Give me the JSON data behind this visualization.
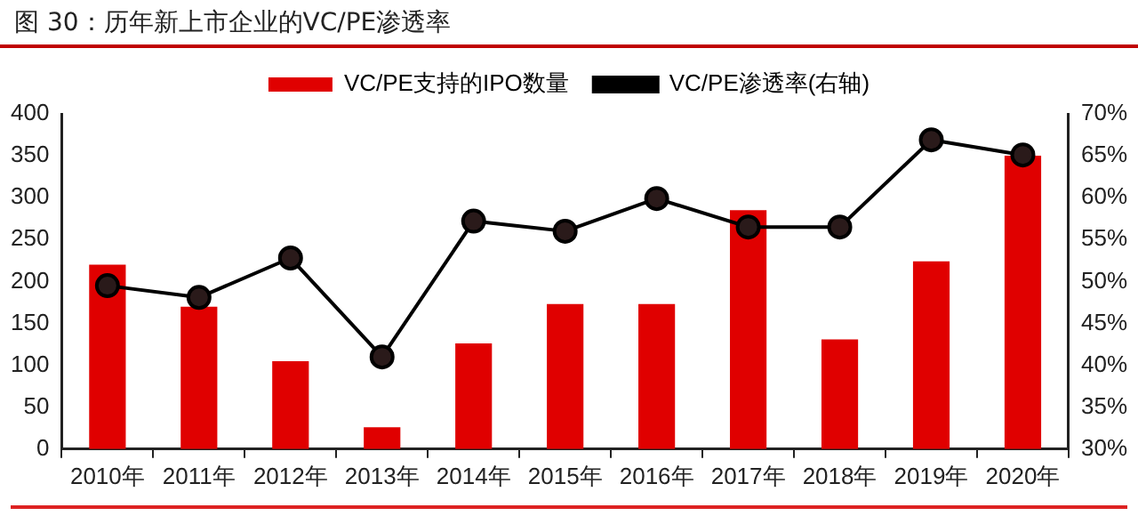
{
  "chart_data": {
    "type": "bar",
    "title": "图 30：历年新上市企业的VC/PE渗透率",
    "categories": [
      "2010年",
      "2011年",
      "2012年",
      "2013年",
      "2014年",
      "2015年",
      "2016年",
      "2017年",
      "2018年",
      "2019年",
      "2020年"
    ],
    "series": [
      {
        "name": "VC/PE支持的IPO数量",
        "color": "#e00000",
        "values": [
          220,
          170,
          105,
          26,
          126,
          173,
          173,
          285,
          131,
          224,
          350
        ]
      },
      {
        "name": "VC/PE渗透率(右轴)",
        "type": "line",
        "axis": "y2",
        "color": "#000000",
        "values": [
          49.5,
          48.1,
          52.8,
          41.0,
          57.2,
          56.0,
          59.9,
          56.5,
          56.5,
          66.9,
          65.1
        ]
      }
    ],
    "ylim": [
      0,
      400
    ],
    "yticks": [
      0,
      50,
      100,
      150,
      200,
      250,
      300,
      350,
      400
    ],
    "y2lim": [
      30,
      70
    ],
    "y2ticks": [
      {
        "value": 30,
        "label": "30%"
      },
      {
        "value": 35,
        "label": "35%"
      },
      {
        "value": 40,
        "label": "40%"
      },
      {
        "value": 45,
        "label": "45%"
      },
      {
        "value": 50,
        "label": "50%"
      },
      {
        "value": 55,
        "label": "55%"
      },
      {
        "value": 60,
        "label": "60%"
      },
      {
        "value": 65,
        "label": "65%"
      },
      {
        "value": 70,
        "label": "70%"
      }
    ],
    "grid": false,
    "legend": "top",
    "marker": "circle",
    "line_style": "solid"
  }
}
